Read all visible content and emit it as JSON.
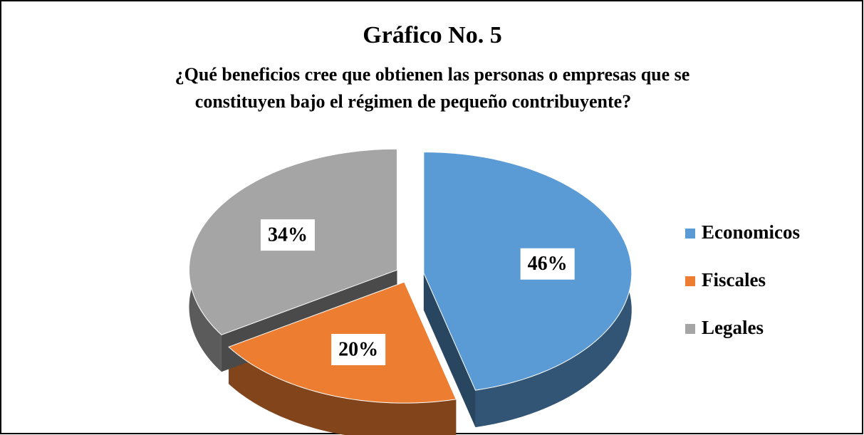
{
  "chart_data": {
    "type": "pie",
    "title": "Gráfico No. 5",
    "subtitle": [
      "¿Qué beneficios cree que obtienen las personas o empresas que se",
      "constituyen bajo el régimen de pequeño contribuyente?"
    ],
    "categories": [
      "Economicos",
      "Fiscales",
      "Legales"
    ],
    "values": [
      46,
      20,
      34
    ],
    "value_labels": [
      "46%",
      "20%",
      "34%"
    ],
    "colors": [
      "#5b9bd5",
      "#ed7d31",
      "#a5a5a5"
    ],
    "legend": "right"
  }
}
